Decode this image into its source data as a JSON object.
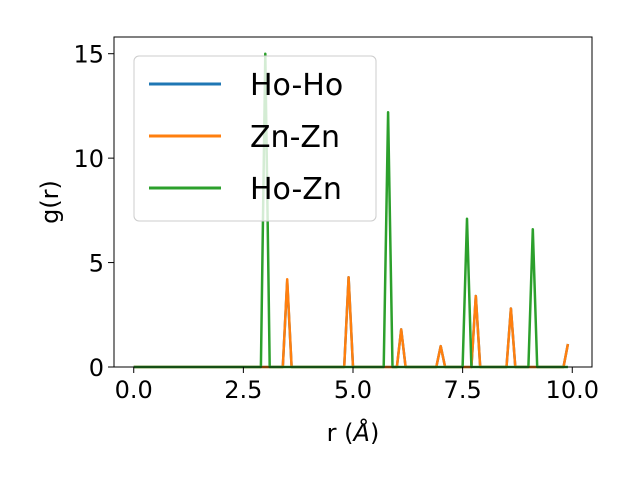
{
  "chart_data": {
    "type": "line",
    "xlabel": "r (",
    "xlabel_unit": "Å",
    "xlabel_suffix": ")",
    "ylabel": "g(r)",
    "xlim": [
      -0.45,
      10.45
    ],
    "ylim": [
      0,
      15.8
    ],
    "xticks": [
      0.0,
      2.5,
      5.0,
      7.5,
      10.0
    ],
    "xtick_labels": [
      "0.0",
      "2.5",
      "5.0",
      "7.5",
      "10.0"
    ],
    "yticks": [
      0,
      5,
      10,
      15
    ],
    "ytick_labels": [
      "0",
      "5",
      "10",
      "15"
    ],
    "grid": false,
    "legend_position": "top-left",
    "series": [
      {
        "name": "Ho-Ho",
        "color": "#1f77b4",
        "x": [
          0,
          3.4,
          3.5,
          3.6,
          4.8,
          4.9,
          5.0,
          6.0,
          6.1,
          6.2,
          6.9,
          7.0,
          7.1,
          7.7,
          7.8,
          7.9,
          8.5,
          8.6,
          8.7,
          9.8,
          9.9
        ],
        "y": [
          0,
          0,
          4.1,
          0,
          0,
          4.3,
          0,
          0,
          1.8,
          0,
          0,
          1.0,
          0,
          0,
          3.4,
          0,
          0,
          2.8,
          0,
          0,
          1.1
        ]
      },
      {
        "name": "Zn-Zn",
        "color": "#ff7f0e",
        "x": [
          0,
          3.4,
          3.5,
          3.6,
          4.8,
          4.9,
          5.0,
          6.0,
          6.1,
          6.2,
          6.9,
          7.0,
          7.1,
          7.7,
          7.8,
          7.9,
          8.5,
          8.6,
          8.7,
          9.8,
          9.9
        ],
        "y": [
          0,
          0,
          4.2,
          0,
          0,
          4.3,
          0,
          0,
          1.8,
          0,
          0,
          1.0,
          0,
          0,
          3.4,
          0,
          0,
          2.8,
          0,
          0,
          1.1
        ]
      },
      {
        "name": "Ho-Zn",
        "color": "#2ca02c",
        "x": [
          0,
          2.9,
          3.0,
          3.1,
          5.7,
          5.8,
          5.9,
          7.5,
          7.6,
          7.7,
          9.0,
          9.1,
          9.2,
          9.9
        ],
        "y": [
          0,
          0,
          15.0,
          0,
          0,
          12.2,
          0,
          0,
          7.1,
          0,
          0,
          6.6,
          0,
          0
        ]
      }
    ]
  }
}
